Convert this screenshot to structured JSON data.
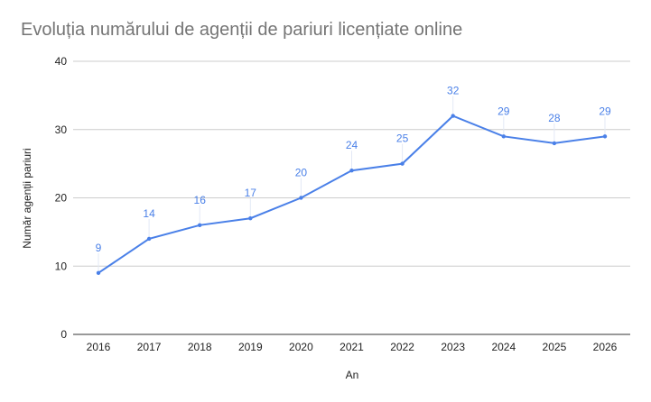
{
  "chart_data": {
    "type": "line",
    "title": "Evoluția numărului de agenții de pariuri licențiate online",
    "xlabel": "An",
    "ylabel": "Număr agenții pariuri",
    "categories": [
      "2016",
      "2017",
      "2018",
      "2019",
      "2020",
      "2021",
      "2022",
      "2023",
      "2024",
      "2025",
      "2026"
    ],
    "series": [
      {
        "values": [
          9,
          14,
          16,
          17,
          20,
          24,
          25,
          32,
          29,
          28,
          29
        ],
        "color": "#4a80e8"
      }
    ],
    "ylim": [
      0,
      40
    ],
    "yticks": [
      0,
      10,
      20,
      30,
      40
    ],
    "grid": true,
    "data_labels": true,
    "legend": "none"
  }
}
